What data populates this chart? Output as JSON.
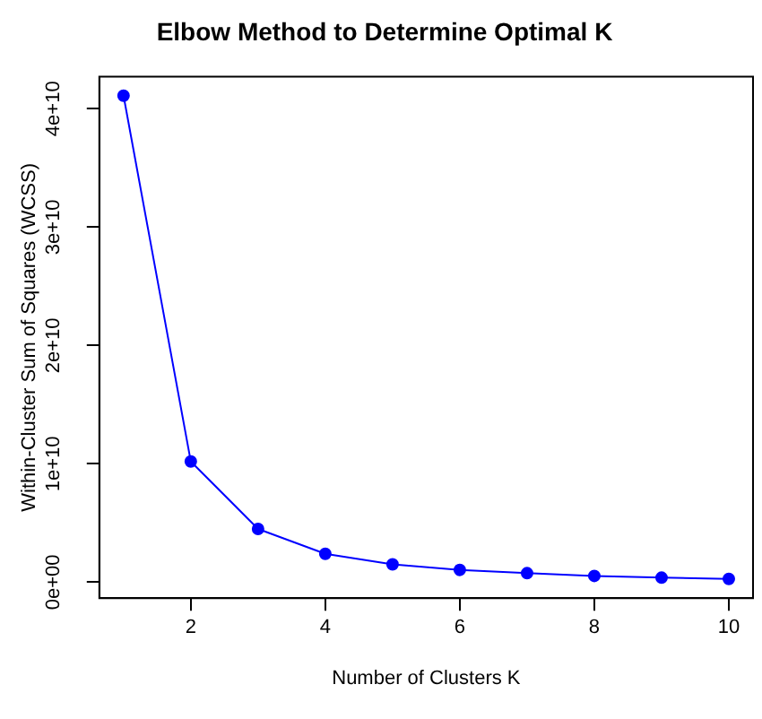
{
  "chart_data": {
    "type": "line",
    "title": "Elbow Method to Determine Optimal K",
    "xlabel": "Number of Clusters K",
    "ylabel": "Within-Cluster Sum of Squares (WCSS)",
    "x": [
      1,
      2,
      3,
      4,
      5,
      6,
      7,
      8,
      9,
      10
    ],
    "series": [
      {
        "color": "#0000ff",
        "values": [
          41100000000,
          10200000000,
          4500000000,
          2400000000,
          1500000000,
          1040000000,
          760000000,
          530000000,
          380000000,
          280000000
        ]
      }
    ],
    "xlim": [
      0.64,
      10.36
    ],
    "xticks": [
      2,
      4,
      6,
      8,
      10
    ],
    "ylim": [
      -1350000000,
      42700000000
    ],
    "yticks": [
      {
        "value": 0,
        "label": "0e+00"
      },
      {
        "value": 10000000000,
        "label": "1e+10"
      },
      {
        "value": 20000000000,
        "label": "2e+10"
      },
      {
        "value": 30000000000,
        "label": "3e+10"
      },
      {
        "value": 40000000000,
        "label": "4e+10"
      }
    ],
    "grid": false,
    "legend": false,
    "marker": "circle",
    "line_style": "solid"
  }
}
